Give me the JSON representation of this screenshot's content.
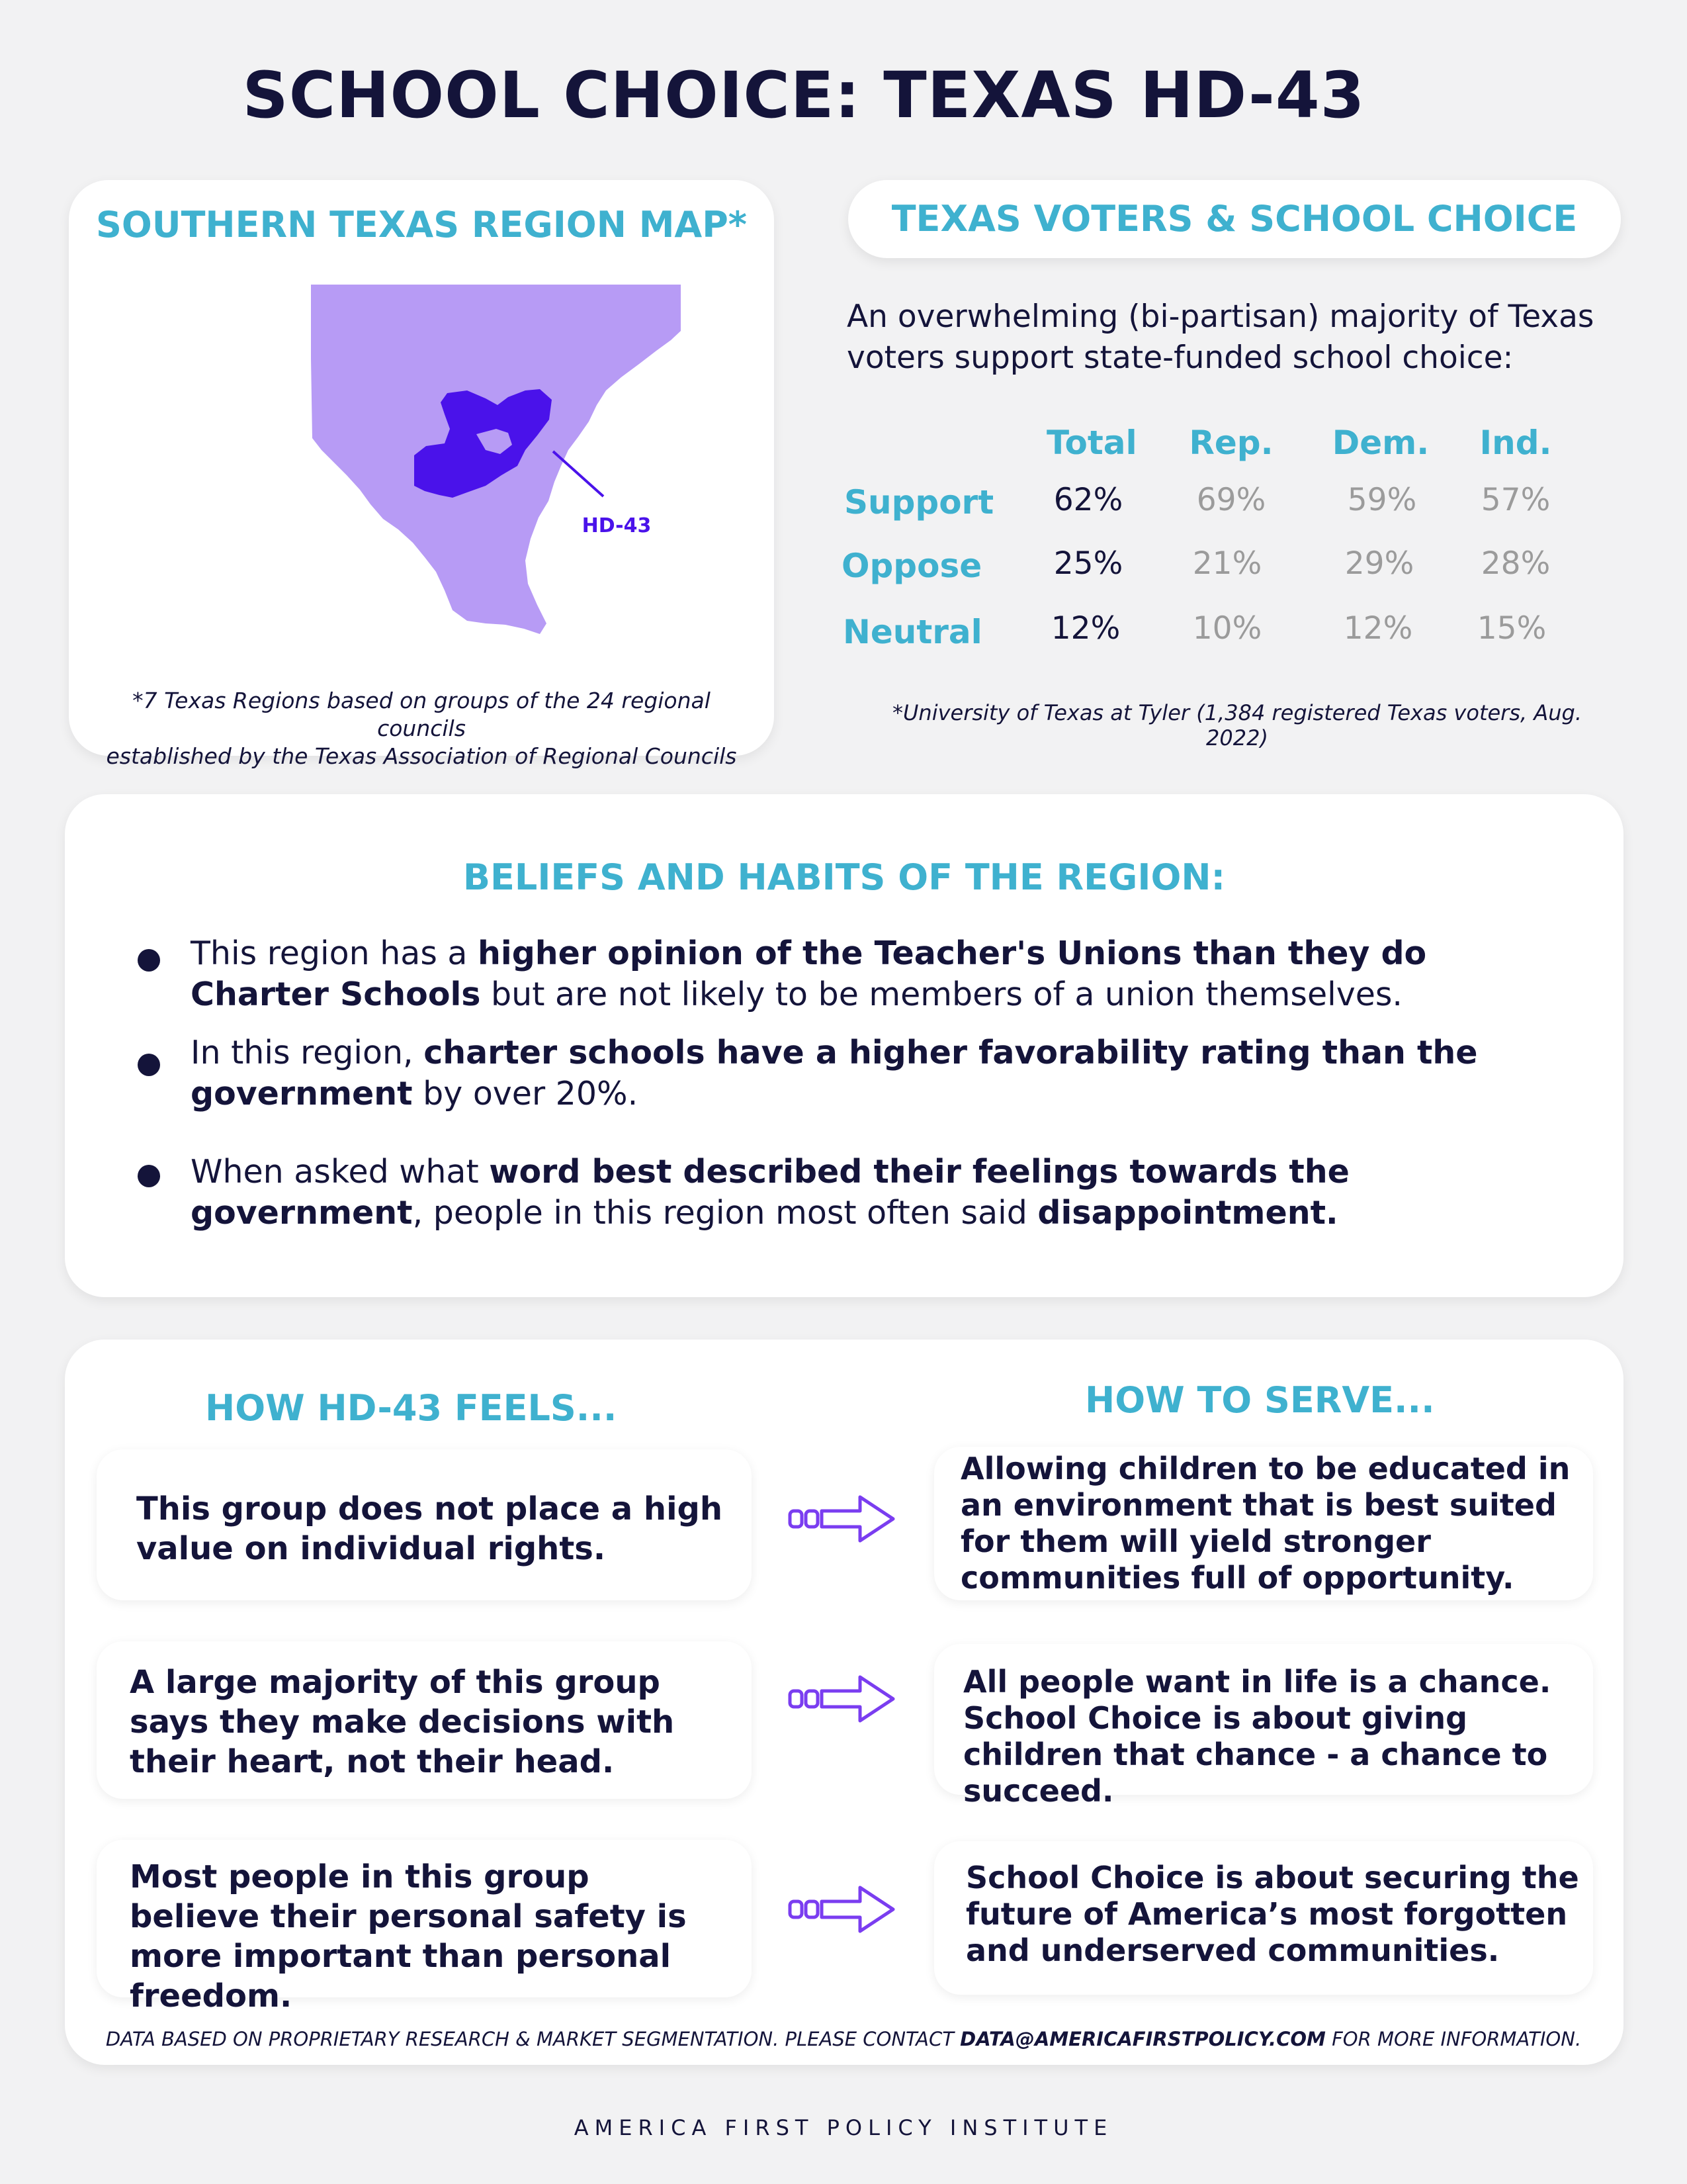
{
  "title": "SCHOOL CHOICE: TEXAS HD-43",
  "map_card": {
    "heading": "SOUTHERN TEXAS REGION MAP*",
    "district_label": "HD-43",
    "note_line1": "*7 Texas Regions based on groups of the 24 regional councils",
    "note_line2": "established by the Texas Association of Regional Councils",
    "colors": {
      "region": "#b79bf5",
      "district": "#4a12ea",
      "label": "#4a12ea"
    }
  },
  "voters": {
    "heading": "TEXAS VOTERS & SCHOOL CHOICE",
    "intro": "An overwhelming (bi-partisan) majority of Texas voters support state-funded school choice:",
    "columns": [
      "Total",
      "Rep.",
      "Dem.",
      "Ind."
    ],
    "rows": [
      {
        "label": "Support",
        "values": [
          "62%",
          "69%",
          "59%",
          "57%"
        ]
      },
      {
        "label": "Oppose",
        "values": [
          "25%",
          "21%",
          "29%",
          "28%"
        ]
      },
      {
        "label": "Neutral",
        "values": [
          "12%",
          "10%",
          "12%",
          "15%"
        ]
      }
    ],
    "note": "*University of Texas at Tyler (1,384 registered Texas voters, Aug. 2022)"
  },
  "beliefs": {
    "heading": "BELIEFS AND HABITS OF THE REGION:",
    "items": [
      {
        "parts": [
          {
            "text": "This region has a ",
            "bold": false
          },
          {
            "text": "higher opinion of the Teacher's Unions than they do Charter Schools",
            "bold": true
          },
          {
            "text": " but are not likely to be members of a union themselves.",
            "bold": false
          }
        ]
      },
      {
        "parts": [
          {
            "text": "In this region, ",
            "bold": false
          },
          {
            "text": "charter schools have a higher favorability rating than the government",
            "bold": true
          },
          {
            "text": " by over 20%.",
            "bold": false
          }
        ]
      },
      {
        "parts": [
          {
            "text": "When asked what ",
            "bold": false
          },
          {
            "text": "word best described their feelings towards the government",
            "bold": true
          },
          {
            "text": ", people in this region most often said ",
            "bold": false
          },
          {
            "text": "disappointment.",
            "bold": true
          }
        ]
      }
    ]
  },
  "feels": {
    "left_heading": "HOW HD-43 FEELS...",
    "right_heading": "HOW TO SERVE...",
    "pairs": [
      {
        "feel": "This group does not place a high value on individual rights.",
        "serve": "Allowing children to be educated in an environment that is best suited for them will yield stronger communities full of opportunity."
      },
      {
        "feel": "A large majority of this group says they make decisions with their heart, not their head.",
        "serve": "All people want in life is a chance. School Choice is about giving children that chance - a chance to succeed."
      },
      {
        "feel": "Most people in this group believe their personal safety is more important than personal freedom.",
        "serve": "School Choice is about securing the future of America’s most forgotten and underserved communities."
      }
    ],
    "arrow_icon": "arrow-right-icon",
    "arrow_color": "#7a3df0"
  },
  "footer": {
    "note_prefix": "DATA BASED ON PROPRIETARY RESEARCH & MARKET SEGMENTATION. PLEASE CONTACT ",
    "email": "DATA@AMERICAFIRSTPOLICY.COM",
    "note_suffix": " FOR MORE INFORMATION.",
    "org": "AMERICA FIRST POLICY INSTITUTE"
  }
}
